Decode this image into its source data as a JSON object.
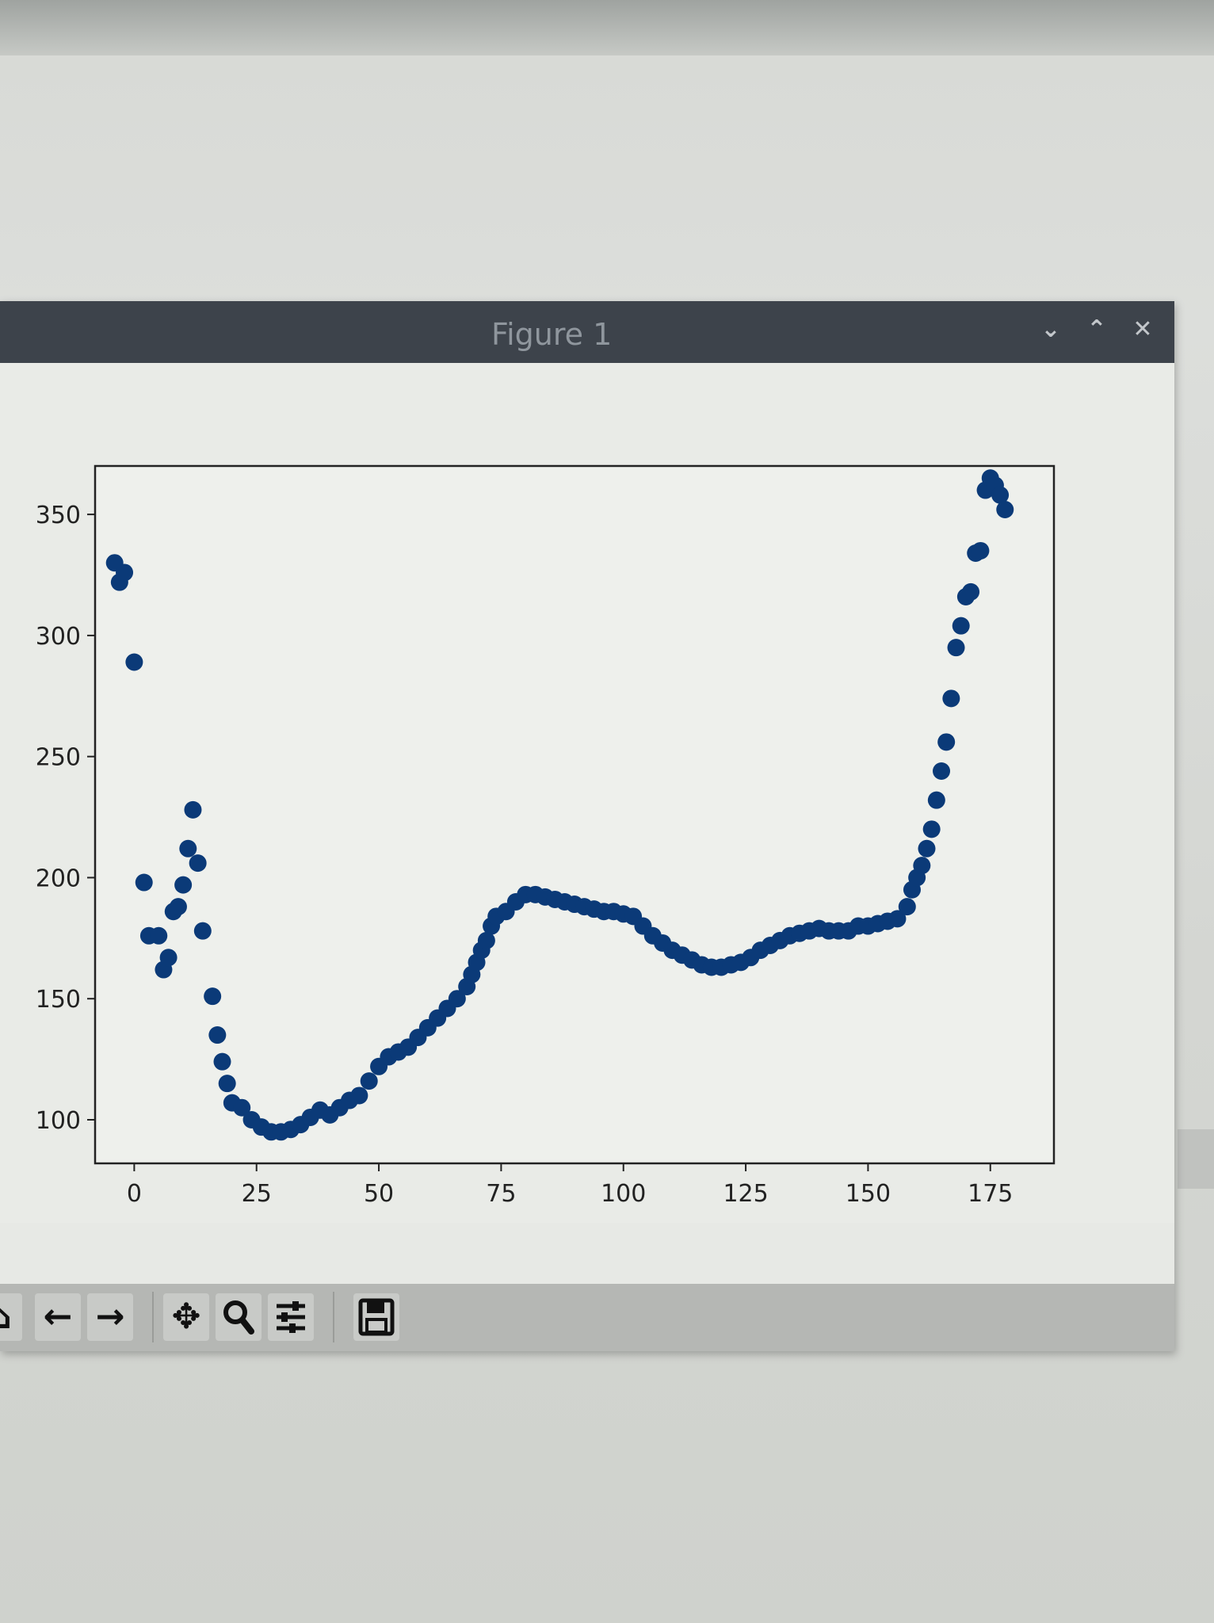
{
  "window": {
    "title": "Figure 1",
    "controls": {
      "minimize": "⌄",
      "maximize": "⌃",
      "close": "✕"
    }
  },
  "toolbar": {
    "buttons": [
      "home-icon",
      "back-arrow-icon",
      "forward-arrow-icon",
      "pan-icon",
      "zoom-icon",
      "configure-subplots-icon",
      "save-icon"
    ]
  },
  "colors": {
    "marker": "#0b3a78",
    "titlebar": "#3d434b"
  },
  "chart_data": {
    "type": "scatter",
    "title": "",
    "xlabel": "",
    "ylabel": "",
    "xlim": [
      -8,
      188
    ],
    "ylim": [
      82,
      370
    ],
    "xticks": [
      0,
      25,
      50,
      75,
      100,
      125,
      150,
      175
    ],
    "yticks": [
      100,
      150,
      200,
      250,
      300,
      350
    ],
    "grid": false,
    "x": [
      -4,
      -3,
      -2,
      0,
      2,
      3,
      5,
      6,
      7,
      8,
      9,
      10,
      11,
      12,
      13,
      14,
      16,
      17,
      18,
      19,
      20,
      22,
      24,
      26,
      28,
      30,
      32,
      34,
      36,
      38,
      40,
      42,
      44,
      46,
      48,
      50,
      52,
      54,
      56,
      58,
      60,
      62,
      64,
      66,
      68,
      69,
      70,
      71,
      72,
      73,
      74,
      76,
      78,
      80,
      82,
      84,
      86,
      88,
      90,
      92,
      94,
      96,
      98,
      100,
      102,
      104,
      106,
      108,
      110,
      112,
      114,
      116,
      118,
      120,
      122,
      124,
      126,
      128,
      130,
      132,
      134,
      136,
      138,
      140,
      142,
      144,
      146,
      148,
      150,
      152,
      154,
      156,
      158,
      159,
      160,
      161,
      162,
      163,
      164,
      165,
      166,
      167,
      168,
      169,
      170,
      171,
      172,
      173,
      174,
      175,
      176,
      177,
      178
    ],
    "y": [
      330,
      322,
      326,
      289,
      198,
      176,
      176,
      162,
      167,
      186,
      188,
      197,
      212,
      228,
      206,
      178,
      151,
      135,
      124,
      115,
      107,
      105,
      100,
      97,
      95,
      95,
      96,
      98,
      101,
      104,
      102,
      105,
      108,
      110,
      116,
      122,
      126,
      128,
      130,
      134,
      138,
      142,
      146,
      150,
      155,
      160,
      165,
      170,
      174,
      180,
      184,
      186,
      190,
      193,
      193,
      192,
      191,
      190,
      189,
      188,
      187,
      186,
      186,
      185,
      184,
      180,
      176,
      173,
      170,
      168,
      166,
      164,
      163,
      163,
      164,
      165,
      167,
      170,
      172,
      174,
      176,
      177,
      178,
      179,
      178,
      178,
      178,
      180,
      180,
      181,
      182,
      183,
      188,
      195,
      200,
      205,
      212,
      220,
      232,
      244,
      256,
      274,
      295,
      304,
      316,
      318,
      334,
      335,
      360,
      365,
      362,
      358,
      352
    ]
  }
}
